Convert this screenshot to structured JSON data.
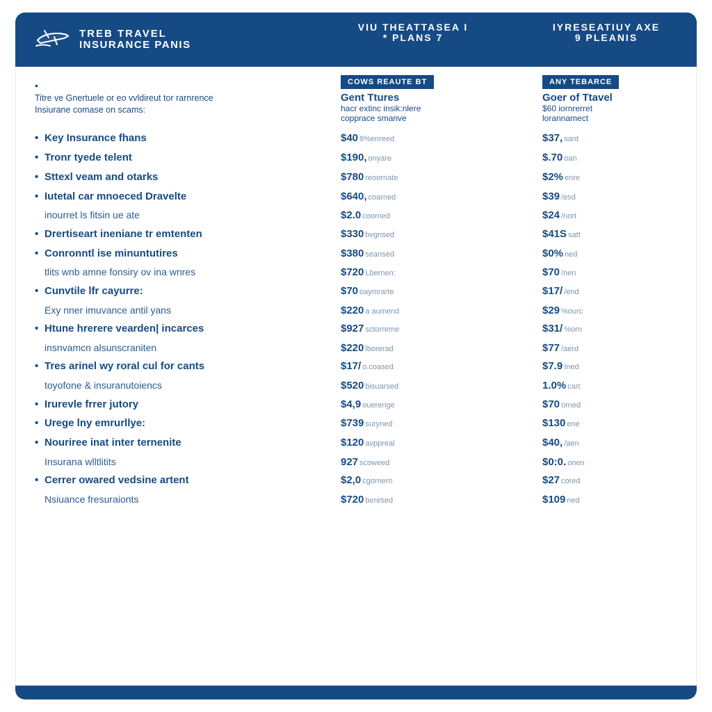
{
  "colors": {
    "brand": "#164a84",
    "text": "#164a84",
    "muted": "#7d95ad",
    "bg": "#ffffff"
  },
  "header": {
    "title_l1": "TREB TRAVEL",
    "title_l2": "INSURANCE PANIS",
    "col_mid_l1": "VIU THEATTASEA I",
    "col_mid_l2": "* PLANS 7",
    "col_right_l1": "IYRESEATIUY AXE",
    "col_right_l2": "9 PLEANIS"
  },
  "planHeaders": {
    "mid_badge": "COWS REAUTE BT",
    "mid_title": "Gent Ttures",
    "mid_sub1": "hacr extinc insik:nlere",
    "mid_sub2": "copprace smanve",
    "right_badge": "ANY TEBARCE",
    "right_title": "Goer of Ttavel",
    "right_sub1": "$60 iornrerret",
    "right_sub2": "lorannamect"
  },
  "intro": {
    "line1": "Titre ve Gnertuele or eo vvldireut tor rarnrence",
    "line2": "Insiurane comase on scams:"
  },
  "rows": [
    {
      "bold": true,
      "label": "Key Insurance fhans",
      "v1": "$40",
      "s1": "8%enreed",
      "v2": "$37,",
      "s2": "sant"
    },
    {
      "bold": true,
      "label": "Tronr tyede telent",
      "v1": "$190,",
      "s1": "onyare",
      "v2": "$.70",
      "s2": "oan"
    },
    {
      "bold": true,
      "label": "Sttexl veam and otarks",
      "v1": "$780",
      "s1": "reoornate",
      "v2": "$2%",
      "s2": "enre"
    },
    {
      "bold": true,
      "label": "Iutetal car mnoeced Dravelte",
      "v1": "$640,",
      "s1": "coarned",
      "v2": "$39",
      "s2": "/esd"
    },
    {
      "bold": false,
      "label": "inourret ls fitsin ue ate",
      "v1": "$2.0",
      "s1": "coorned",
      "v2": "$24",
      "s2": "/nort"
    },
    {
      "bold": true,
      "label": "Drertiseart ineniane tr emtenten",
      "v1": "$330",
      "s1": "bvgnsed",
      "v2": "$41S",
      "s2": "satt"
    },
    {
      "bold": true,
      "label": "Conronntl ise minuntutires",
      "v1": "$380",
      "s1": "seansed",
      "v2": "$0%",
      "s2": "ned"
    },
    {
      "bold": false,
      "label": "tlits wnb amne fonsiry ov ina wnres",
      "v1": "$720",
      "s1": "Lbernen:",
      "v2": "$70",
      "s2": "/nen"
    },
    {
      "bold": true,
      "label": "Cunvtile lfr cayurre:",
      "v1": "$70",
      "s1": "oaymrarte",
      "v2": "$17/",
      "s2": "/end"
    },
    {
      "bold": false,
      "label": "Exy nner imuvance antil yans",
      "v1": "$220",
      "s1": "a aumend",
      "v2": "$29",
      "s2": "%ourc"
    },
    {
      "bold": true,
      "label": "Htune hrerere vearden| incarces",
      "v1": "$927",
      "s1": "sctorreme",
      "v2": "$31/",
      "s2": "%orn"
    },
    {
      "bold": false,
      "label": "insnvamcn alsunscraniten",
      "v1": "$220",
      "s1": "lborerad",
      "v2": "$77",
      "s2": "/aerd"
    },
    {
      "bold": true,
      "label": "Tres arinel wy roral cul for cants",
      "v1": "$17/",
      "s1": "o.coased",
      "v2": "$7.9",
      "s2": "Ined"
    },
    {
      "bold": false,
      "label": "toyofone & insuranutoiencs",
      "v1": "$520",
      "s1": "bisuarsed",
      "v2": "1.0%",
      "s2": "cart"
    },
    {
      "bold": true,
      "label": "Irurevle frrer jutory",
      "v1": "$4,9",
      "s1": "ouerenge",
      "v2": "$70",
      "s2": "orned"
    },
    {
      "bold": true,
      "label": "Urege lny emrurllye:",
      "v1": "$739",
      "s1": "suryned",
      "v2": "$130",
      "s2": "ene"
    },
    {
      "bold": true,
      "label": "Nouriree inat inter ternenite",
      "v1": "$120",
      "s1": "avppreal",
      "v2": "$40,",
      "s2": "/aen"
    },
    {
      "bold": false,
      "label": "Insurana wlltlitits",
      "v1": "927",
      "s1": "scoweed",
      "v2": "$0:0.",
      "s2": "onen"
    },
    {
      "bold": true,
      "label": "Cerrer owared vedsine artent",
      "v1": "$2,0",
      "s1": "cgornern",
      "v2": "$27",
      "s2": "cored"
    },
    {
      "bold": false,
      "label": "Nsiuance fresuraionts",
      "v1": "$720",
      "s1": "beresed",
      "v2": "$109",
      "s2": "ned"
    }
  ]
}
